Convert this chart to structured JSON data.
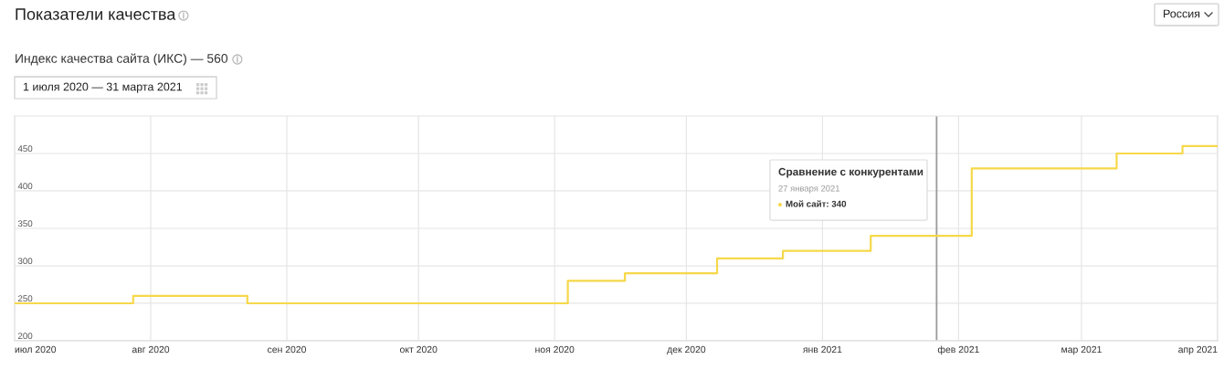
{
  "chart_data": {
    "type": "step",
    "title": "Показатели качества",
    "subtitle": "Индекс качества сайта (ИКС) — 560",
    "annotations": [
      "1 июля 2020 — 31 марта 2021",
      "Россия",
      "Сравнение с конкурентами",
      "27 января 2021",
      "Мой сайт: 340"
    ],
    "x": [
      "2020-07-01",
      "2020-07-28",
      "2020-08-23",
      "2020-11-04",
      "2020-11-17",
      "2020-12-08",
      "2020-12-23",
      "2021-01-12",
      "2021-02-04",
      "2021-03-09",
      "2021-03-24",
      "2021-04-01"
    ],
    "values": [
      250,
      260,
      250,
      280,
      290,
      310,
      320,
      340,
      430,
      450,
      460,
      460
    ],
    "color": "#f6d84a",
    "xlim": [
      "2020-07-01",
      "2021-04-01"
    ],
    "xticks": [
      {
        "value": "2020-07-01",
        "label": "июл 2020"
      },
      {
        "value": "2020-08-01",
        "label": "авг 2020"
      },
      {
        "value": "2020-09-01",
        "label": "сен 2020"
      },
      {
        "value": "2020-10-01",
        "label": "окт 2020"
      },
      {
        "value": "2020-11-01",
        "label": "ноя 2020"
      },
      {
        "value": "2020-12-01",
        "label": "дек 2020"
      },
      {
        "value": "2021-01-01",
        "label": "янв 2021"
      },
      {
        "value": "2021-02-01",
        "label": "фев 2021"
      },
      {
        "value": "2021-03-01",
        "label": "мар 2021"
      },
      {
        "value": "2021-04-01",
        "label": "апр 2021"
      }
    ],
    "ylim": [
      200,
      500
    ],
    "yticks": [
      200,
      250,
      300,
      350,
      400,
      450
    ],
    "grid": true,
    "ref_lines": [
      {
        "axis": "x",
        "value": "2021-01-27",
        "color": "#9a9a9a"
      }
    ]
  }
}
